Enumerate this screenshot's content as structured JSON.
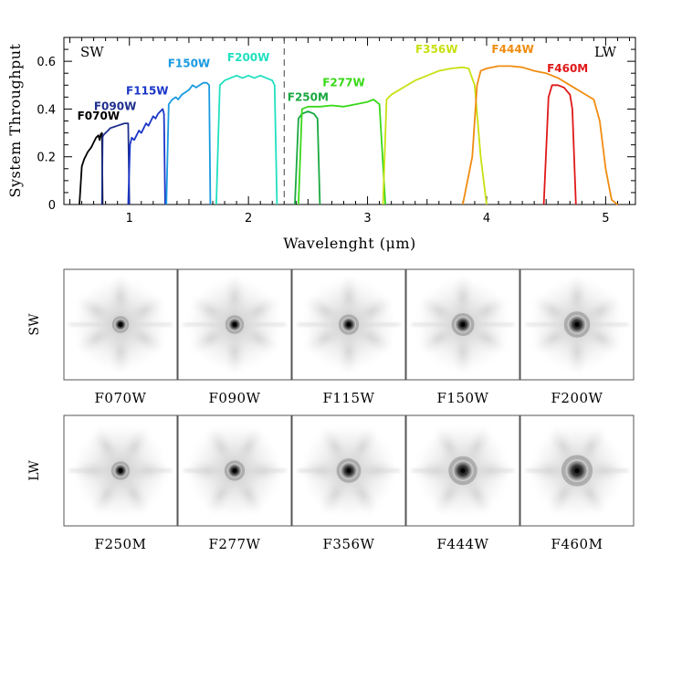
{
  "chart_data": {
    "type": "line",
    "xlabel": "Wavelenght (μm)",
    "ylabel": "System Throughput",
    "xlim": [
      0.45,
      5.25
    ],
    "ylim": [
      0,
      0.7
    ],
    "xticks": [
      1,
      2,
      3,
      4,
      5
    ],
    "yticks": [
      0,
      0.2,
      0.4,
      0.6
    ],
    "ytick_labels": [
      "0",
      "0.2",
      "0.4",
      "0.6"
    ],
    "divider_x": 2.3,
    "channel_labels": {
      "sw": "SW",
      "lw": "LW"
    },
    "series": [
      {
        "name": "F070W",
        "color": "#000000",
        "label_at": [
          0.74,
          0.355
        ],
        "points": [
          [
            0.58,
            0.0
          ],
          [
            0.6,
            0.16
          ],
          [
            0.62,
            0.19
          ],
          [
            0.65,
            0.22
          ],
          [
            0.68,
            0.24
          ],
          [
            0.7,
            0.26
          ],
          [
            0.72,
            0.28
          ],
          [
            0.74,
            0.29
          ],
          [
            0.75,
            0.27
          ],
          [
            0.76,
            0.295
          ],
          [
            0.77,
            0.3
          ],
          [
            0.775,
            0.0
          ]
        ]
      },
      {
        "name": "F090W",
        "color": "#1e2f8c",
        "label_at": [
          0.88,
          0.395
        ],
        "points": [
          [
            0.77,
            0.0
          ],
          [
            0.775,
            0.28
          ],
          [
            0.78,
            0.29
          ],
          [
            0.8,
            0.3
          ],
          [
            0.82,
            0.31
          ],
          [
            0.84,
            0.32
          ],
          [
            0.87,
            0.325
          ],
          [
            0.9,
            0.33
          ],
          [
            0.93,
            0.335
          ],
          [
            0.96,
            0.34
          ],
          [
            0.99,
            0.34
          ],
          [
            1.0,
            0.0
          ]
        ]
      },
      {
        "name": "F115W",
        "color": "#1a36c8",
        "label_at": [
          1.15,
          0.46
        ],
        "points": [
          [
            0.99,
            0.0
          ],
          [
            1.005,
            0.25
          ],
          [
            1.02,
            0.28
          ],
          [
            1.04,
            0.27
          ],
          [
            1.06,
            0.29
          ],
          [
            1.08,
            0.31
          ],
          [
            1.1,
            0.3
          ],
          [
            1.12,
            0.32
          ],
          [
            1.14,
            0.34
          ],
          [
            1.16,
            0.33
          ],
          [
            1.18,
            0.35
          ],
          [
            1.2,
            0.37
          ],
          [
            1.22,
            0.36
          ],
          [
            1.24,
            0.38
          ],
          [
            1.26,
            0.39
          ],
          [
            1.28,
            0.4
          ],
          [
            1.29,
            0.38
          ],
          [
            1.3,
            0.0
          ]
        ]
      },
      {
        "name": "F150W",
        "color": "#1a9ae0",
        "label_at": [
          1.5,
          0.575
        ],
        "points": [
          [
            1.31,
            0.0
          ],
          [
            1.33,
            0.42
          ],
          [
            1.36,
            0.44
          ],
          [
            1.39,
            0.45
          ],
          [
            1.41,
            0.44
          ],
          [
            1.44,
            0.46
          ],
          [
            1.47,
            0.47
          ],
          [
            1.5,
            0.48
          ],
          [
            1.53,
            0.5
          ],
          [
            1.56,
            0.49
          ],
          [
            1.59,
            0.5
          ],
          [
            1.62,
            0.51
          ],
          [
            1.65,
            0.51
          ],
          [
            1.67,
            0.5
          ],
          [
            1.68,
            0.0
          ]
        ]
      },
      {
        "name": "F200W",
        "color": "#20e0c0",
        "label_at": [
          2.0,
          0.6
        ],
        "points": [
          [
            1.73,
            0.0
          ],
          [
            1.76,
            0.5
          ],
          [
            1.8,
            0.52
          ],
          [
            1.85,
            0.53
          ],
          [
            1.9,
            0.54
          ],
          [
            1.95,
            0.53
          ],
          [
            2.0,
            0.54
          ],
          [
            2.05,
            0.53
          ],
          [
            2.1,
            0.54
          ],
          [
            2.15,
            0.53
          ],
          [
            2.2,
            0.52
          ],
          [
            2.22,
            0.5
          ],
          [
            2.24,
            0.0
          ]
        ]
      },
      {
        "name": "F250M",
        "color": "#18a840",
        "label_at": [
          2.5,
          0.435
        ],
        "points": [
          [
            2.39,
            0.0
          ],
          [
            2.42,
            0.36
          ],
          [
            2.45,
            0.38
          ],
          [
            2.5,
            0.39
          ],
          [
            2.55,
            0.38
          ],
          [
            2.58,
            0.36
          ],
          [
            2.6,
            0.0
          ]
        ]
      },
      {
        "name": "F277W",
        "color": "#38d818",
        "label_at": [
          2.8,
          0.495
        ],
        "points": [
          [
            2.42,
            0.0
          ],
          [
            2.45,
            0.4
          ],
          [
            2.5,
            0.41
          ],
          [
            2.6,
            0.41
          ],
          [
            2.7,
            0.415
          ],
          [
            2.8,
            0.41
          ],
          [
            2.9,
            0.42
          ],
          [
            3.0,
            0.43
          ],
          [
            3.05,
            0.44
          ],
          [
            3.1,
            0.42
          ],
          [
            3.15,
            0.0
          ]
        ]
      },
      {
        "name": "F356W",
        "color": "#c8e010",
        "label_at": [
          3.58,
          0.635
        ],
        "points": [
          [
            3.13,
            0.0
          ],
          [
            3.16,
            0.44
          ],
          [
            3.2,
            0.46
          ],
          [
            3.3,
            0.49
          ],
          [
            3.4,
            0.52
          ],
          [
            3.5,
            0.54
          ],
          [
            3.6,
            0.56
          ],
          [
            3.7,
            0.57
          ],
          [
            3.8,
            0.575
          ],
          [
            3.85,
            0.57
          ],
          [
            3.9,
            0.5
          ],
          [
            3.95,
            0.2
          ],
          [
            4.0,
            0.0
          ]
        ]
      },
      {
        "name": "F444W",
        "color": "#f08c10",
        "label_at": [
          4.22,
          0.635
        ],
        "points": [
          [
            3.8,
            0.0
          ],
          [
            3.88,
            0.2
          ],
          [
            3.92,
            0.5
          ],
          [
            3.95,
            0.56
          ],
          [
            4.0,
            0.57
          ],
          [
            4.1,
            0.58
          ],
          [
            4.2,
            0.58
          ],
          [
            4.3,
            0.575
          ],
          [
            4.4,
            0.56
          ],
          [
            4.5,
            0.55
          ],
          [
            4.6,
            0.53
          ],
          [
            4.7,
            0.5
          ],
          [
            4.8,
            0.47
          ],
          [
            4.9,
            0.44
          ],
          [
            4.95,
            0.35
          ],
          [
            5.0,
            0.15
          ],
          [
            5.05,
            0.02
          ],
          [
            5.1,
            0.0
          ]
        ]
      },
      {
        "name": "F460M",
        "color": "#e01818",
        "label_at": [
          4.68,
          0.555
        ],
        "points": [
          [
            4.48,
            0.0
          ],
          [
            4.52,
            0.45
          ],
          [
            4.55,
            0.5
          ],
          [
            4.6,
            0.5
          ],
          [
            4.65,
            0.49
          ],
          [
            4.7,
            0.46
          ],
          [
            4.72,
            0.4
          ],
          [
            4.75,
            0.0
          ]
        ]
      }
    ]
  },
  "psf_panel": {
    "rows": [
      {
        "label": "SW",
        "filters": [
          "F070W",
          "F090W",
          "F115W",
          "F150W",
          "F200W"
        ],
        "core_scale": [
          1.0,
          1.1,
          1.2,
          1.35,
          1.55
        ]
      },
      {
        "label": "LW",
        "filters": [
          "F250M",
          "F277W",
          "F356W",
          "F444W",
          "F460M"
        ],
        "core_scale": [
          1.1,
          1.2,
          1.45,
          1.7,
          1.85
        ]
      }
    ]
  },
  "colors": {
    "axis": "#000000",
    "divider": "#444444",
    "psf_frame": "#555555"
  }
}
